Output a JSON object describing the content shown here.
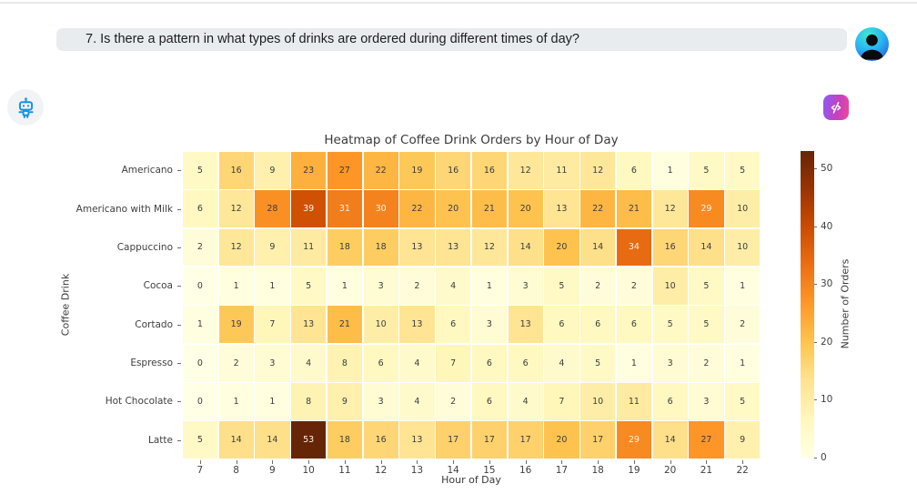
{
  "question": {
    "text": "7. Is there a pattern in what types of drinks are ordered during different times of day?"
  },
  "icons": {
    "user_avatar": "person-silhouette-icon",
    "assistant": "robot-icon",
    "action_button": "code-off-icon"
  },
  "colors": {
    "bubble_bg": "#e9ecef",
    "robot_blue": "#1792e8",
    "action_gradient_start": "#8b5cf6",
    "action_gradient_end": "#ec4899",
    "avatar_gradient_start": "#3fe8cf",
    "avatar_gradient_end": "#2948d8"
  },
  "chart_data": {
    "type": "heatmap",
    "title": "Heatmap of Coffee Drink Orders by Hour of Day",
    "xlabel": "Hour of Day",
    "ylabel": "Coffee Drink",
    "colorbar_label": "Number of Orders",
    "colorbar_ticks": [
      0,
      10,
      20,
      30,
      40,
      50
    ],
    "colormap": "YlOrBr",
    "vmin": 0,
    "vmax": 53,
    "grid": false,
    "x": [
      7,
      8,
      9,
      10,
      11,
      12,
      13,
      14,
      15,
      16,
      17,
      18,
      19,
      20,
      21,
      22
    ],
    "categories": [
      "Americano",
      "Americano with Milk",
      "Cappuccino",
      "Cocoa",
      "Cortado",
      "Espresso",
      "Hot Chocolate",
      "Latte"
    ],
    "series": [
      {
        "name": "Americano",
        "values": [
          5,
          16,
          9,
          23,
          27,
          22,
          19,
          16,
          16,
          12,
          11,
          12,
          6,
          1,
          5,
          5
        ]
      },
      {
        "name": "Americano with Milk",
        "values": [
          6,
          12,
          28,
          39,
          31,
          30,
          22,
          20,
          21,
          20,
          13,
          22,
          21,
          12,
          29,
          10
        ]
      },
      {
        "name": "Cappuccino",
        "values": [
          2,
          12,
          9,
          11,
          18,
          18,
          13,
          13,
          12,
          14,
          20,
          14,
          34,
          16,
          14,
          10
        ]
      },
      {
        "name": "Cocoa",
        "values": [
          0,
          1,
          1,
          5,
          1,
          3,
          2,
          4,
          1,
          3,
          5,
          2,
          2,
          10,
          5,
          1
        ]
      },
      {
        "name": "Cortado",
        "values": [
          1,
          19,
          7,
          13,
          21,
          10,
          13,
          6,
          3,
          13,
          6,
          6,
          6,
          5,
          5,
          2
        ]
      },
      {
        "name": "Espresso",
        "values": [
          0,
          2,
          3,
          4,
          8,
          6,
          4,
          7,
          6,
          6,
          4,
          5,
          1,
          3,
          2,
          1
        ]
      },
      {
        "name": "Hot Chocolate",
        "values": [
          0,
          1,
          1,
          8,
          9,
          3,
          4,
          2,
          6,
          4,
          7,
          10,
          11,
          6,
          3,
          5
        ]
      },
      {
        "name": "Latte",
        "values": [
          5,
          14,
          14,
          53,
          18,
          16,
          13,
          17,
          17,
          17,
          20,
          17,
          29,
          14,
          27,
          9
        ]
      }
    ]
  }
}
